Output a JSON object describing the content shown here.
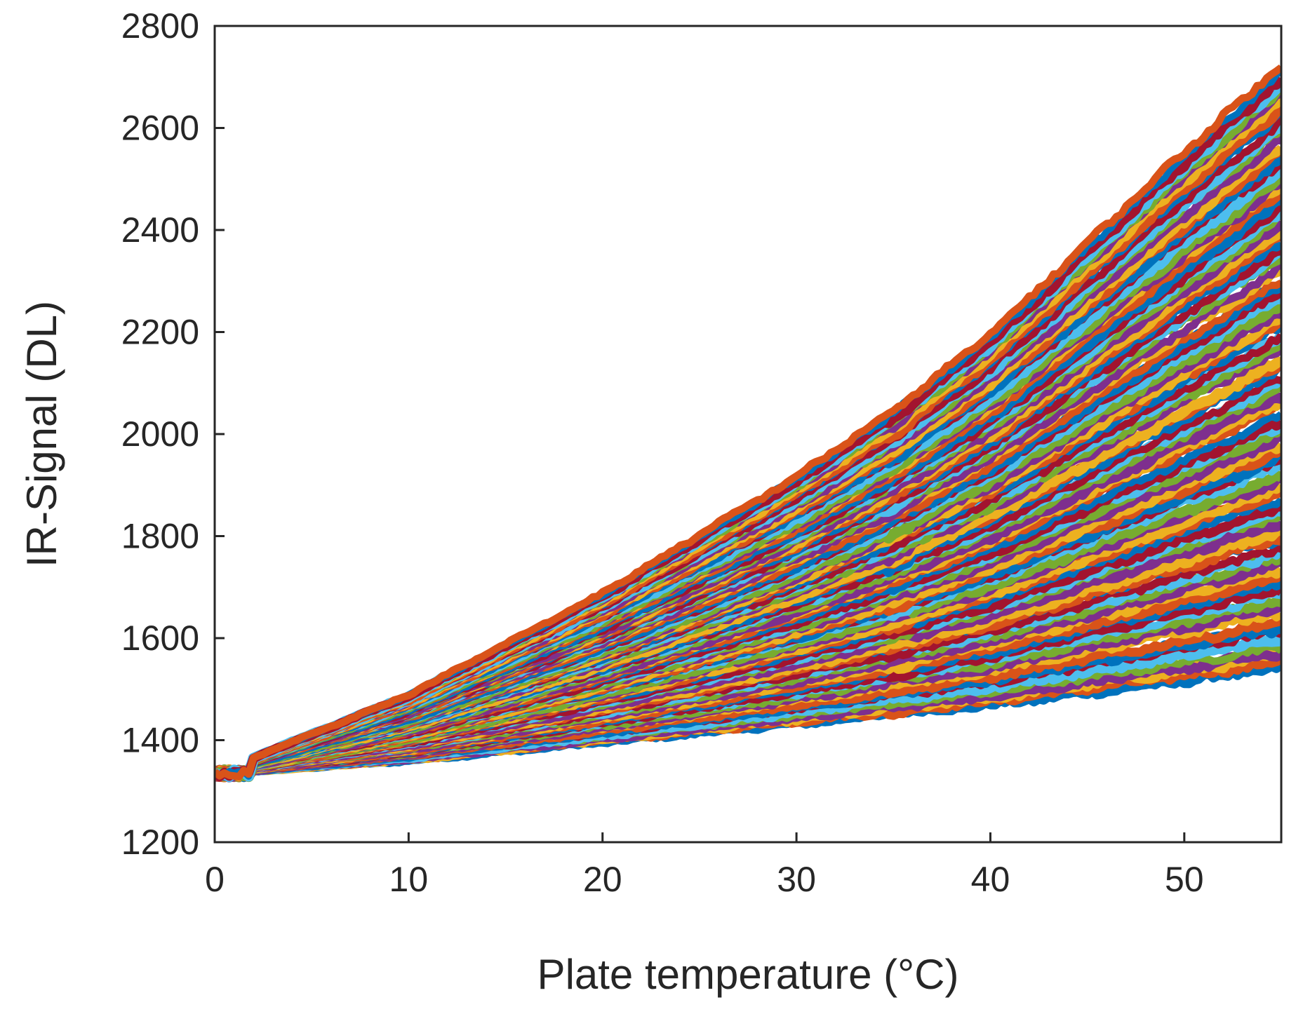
{
  "chart_data": {
    "type": "line",
    "title": "",
    "xlabel": "Plate temperature (°C)",
    "ylabel": "IR-Signal (DL)",
    "xlim": [
      0,
      55
    ],
    "ylim": [
      1200,
      2800
    ],
    "xticks": [
      0,
      10,
      20,
      30,
      40,
      50
    ],
    "yticks": [
      1200,
      1400,
      1600,
      1800,
      2000,
      2200,
      2400,
      2600,
      2800
    ],
    "grid": false,
    "legend": "none",
    "series_count": 100,
    "start_point": {
      "x": 0,
      "y": 1335
    },
    "end_range_at_x55": {
      "min": 1540,
      "max": 2730
    },
    "midpoint_range_at_x35": {
      "min": 1440,
      "max": 2040
    },
    "series_colors": [
      "#0072BD",
      "#D95319",
      "#EDB120",
      "#7E2F8E",
      "#77AC30",
      "#4DBEEE",
      "#A2142F"
    ],
    "series_envelope": {
      "lower": {
        "x": [
          0,
          10,
          20,
          30,
          35,
          40,
          50,
          55
        ],
        "y": [
          1335,
          1360,
          1395,
          1430,
          1448,
          1465,
          1510,
          1535
        ]
      },
      "upper": {
        "x": [
          0,
          10,
          20,
          30,
          35,
          40,
          50,
          55
        ],
        "y": [
          1335,
          1490,
          1690,
          1920,
          2050,
          2200,
          2560,
          2730
        ]
      }
    }
  }
}
